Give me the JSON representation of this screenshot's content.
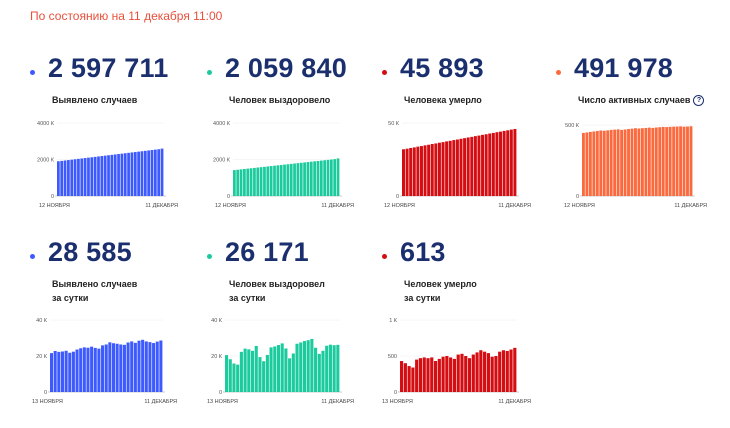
{
  "header": {
    "as_of": "По состоянию на 11 декабря 11:00"
  },
  "stats": [
    {
      "value": "2 597 711",
      "label": [
        "Выявлено случаев"
      ],
      "color": "#3d5afe"
    },
    {
      "value": "2 059 840",
      "label": [
        "Человек выздоровело"
      ],
      "color": "#1ccb9d"
    },
    {
      "value": "45 893",
      "label": [
        "Человека умерло"
      ],
      "color": "#d40d12"
    },
    {
      "value": "491 978",
      "label": [
        "Число активных случаев"
      ],
      "color": "#fb6a3e",
      "help": "?"
    },
    {
      "value": "28 585",
      "label": [
        "Выявлено случаев",
        "за сутки"
      ],
      "color": "#3d5afe"
    },
    {
      "value": "26 171",
      "label": [
        "Человек выздоровел",
        "за сутки"
      ],
      "color": "#1ccb9d"
    },
    {
      "value": "613",
      "label": [
        "Человек умерло",
        "за сутки"
      ],
      "color": "#d40d12"
    }
  ],
  "chart_data": [
    {
      "type": "bar",
      "name": "cases-total",
      "color": "#3d5afe",
      "ylim": [
        0,
        4000
      ],
      "yticks": [
        {
          "value": 0,
          "label": "0"
        },
        {
          "value": 2000,
          "label": "2000 К"
        },
        {
          "value": 4000,
          "label": "4000 К"
        }
      ],
      "xlabels": [
        "12 НОЯБРЯ",
        "11 ДЕКАБРЯ"
      ],
      "values": [
        1903,
        1925,
        1947,
        1969,
        1991,
        2013,
        2035,
        2057,
        2079,
        2101,
        2123,
        2145,
        2167,
        2189,
        2211,
        2233,
        2255,
        2277,
        2299,
        2321,
        2343,
        2365,
        2387,
        2409,
        2431,
        2453,
        2475,
        2497,
        2519,
        2541,
        2563,
        2598
      ]
    },
    {
      "type": "bar",
      "name": "recovered-total",
      "color": "#1ccb9d",
      "ylim": [
        0,
        4000
      ],
      "yticks": [
        {
          "value": 0,
          "label": "0"
        },
        {
          "value": 2000,
          "label": "2000 К"
        },
        {
          "value": 4000,
          "label": "4000 К"
        }
      ],
      "xlabels": [
        "12 НОЯБРЯ",
        "11 ДЕКАБРЯ"
      ],
      "values": [
        1420,
        1440,
        1460,
        1480,
        1500,
        1520,
        1540,
        1560,
        1580,
        1600,
        1620,
        1640,
        1660,
        1680,
        1700,
        1720,
        1740,
        1760,
        1780,
        1800,
        1820,
        1840,
        1860,
        1880,
        1900,
        1920,
        1940,
        1960,
        1980,
        2000,
        2020,
        2060
      ]
    },
    {
      "type": "bar",
      "name": "deaths-total",
      "color": "#d40d12",
      "ylim": [
        0,
        50
      ],
      "yticks": [
        {
          "value": 0,
          "label": "0"
        },
        {
          "value": 50,
          "label": "50 К"
        }
      ],
      "xlabels": [
        "12 НОЯБРЯ",
        "11 ДЕКАБРЯ"
      ],
      "values": [
        32.0,
        32.4,
        32.9,
        33.3,
        33.8,
        34.2,
        34.7,
        35.1,
        35.6,
        36.0,
        36.5,
        36.9,
        37.4,
        37.8,
        38.3,
        38.7,
        39.2,
        39.6,
        40.1,
        40.5,
        41.0,
        41.4,
        41.9,
        42.3,
        42.8,
        43.2,
        43.7,
        44.1,
        44.6,
        45.0,
        45.5,
        45.9
      ]
    },
    {
      "type": "bar",
      "name": "active-cases",
      "color": "#fb6a3e",
      "ylim": [
        0,
        550
      ],
      "yticks": [
        {
          "value": 0,
          "label": "0"
        },
        {
          "value": 500,
          "label": "500 К"
        }
      ],
      "xlabels": [
        "12 НОЯБРЯ",
        "11 ДЕКАБРЯ"
      ],
      "values": [
        445,
        448,
        452,
        455,
        458,
        462,
        460,
        463,
        466,
        468,
        470,
        466,
        469,
        472,
        475,
        478,
        476,
        478,
        480,
        482,
        480,
        483,
        485,
        487,
        486,
        488,
        489,
        490,
        491,
        489,
        490,
        492
      ]
    },
    {
      "type": "bar",
      "name": "cases-daily",
      "color": "#3d5afe",
      "ylim": [
        0,
        40
      ],
      "yticks": [
        {
          "value": 0,
          "label": "0"
        },
        {
          "value": 20,
          "label": "20 К"
        },
        {
          "value": 40,
          "label": "40 К"
        }
      ],
      "xlabels": [
        "13 НОЯБРЯ",
        "11 ДЕКАБРЯ"
      ],
      "values": [
        21.6,
        22.8,
        22.3,
        22.5,
        22.9,
        21.8,
        22.4,
        23.6,
        24.3,
        24.8,
        24.6,
        25.2,
        24.5,
        24.1,
        25.9,
        26.4,
        27.6,
        27.1,
        26.8,
        26.4,
        26.2,
        27.5,
        28.1,
        27.3,
        28.5,
        29.0,
        28.1,
        27.7,
        27.2,
        28.0,
        28.6
      ]
    },
    {
      "type": "bar",
      "name": "recovered-daily",
      "color": "#1ccb9d",
      "ylim": [
        0,
        40
      ],
      "yticks": [
        {
          "value": 0,
          "label": "0"
        },
        {
          "value": 20,
          "label": "20 К"
        },
        {
          "value": 40,
          "label": "40 К"
        }
      ],
      "xlabels": [
        "13 НОЯБРЯ",
        "11 ДЕКАБРЯ"
      ],
      "values": [
        20.5,
        18.2,
        15.8,
        15.2,
        22.3,
        24.1,
        23.7,
        22.9,
        25.6,
        19.4,
        17.1,
        20.6,
        24.8,
        25.3,
        26.1,
        27.0,
        24.2,
        18.7,
        21.4,
        26.8,
        27.5,
        28.3,
        28.8,
        29.5,
        24.6,
        21.2,
        22.9,
        25.7,
        26.3,
        26.0,
        26.2
      ]
    },
    {
      "type": "bar",
      "name": "deaths-daily",
      "color": "#d40d12",
      "ylim": [
        0,
        1000
      ],
      "yticks": [
        {
          "value": 0,
          "label": "0"
        },
        {
          "value": 500,
          "label": "500"
        },
        {
          "value": 1000,
          "label": "1 К"
        }
      ],
      "xlabels": [
        "13 НОЯБРЯ",
        "11 ДЕКАБРЯ"
      ],
      "values": [
        430,
        400,
        360,
        340,
        450,
        470,
        480,
        470,
        480,
        430,
        460,
        490,
        500,
        480,
        460,
        520,
        530,
        500,
        470,
        520,
        550,
        580,
        560,
        540,
        490,
        500,
        560,
        580,
        570,
        590,
        613
      ]
    }
  ]
}
